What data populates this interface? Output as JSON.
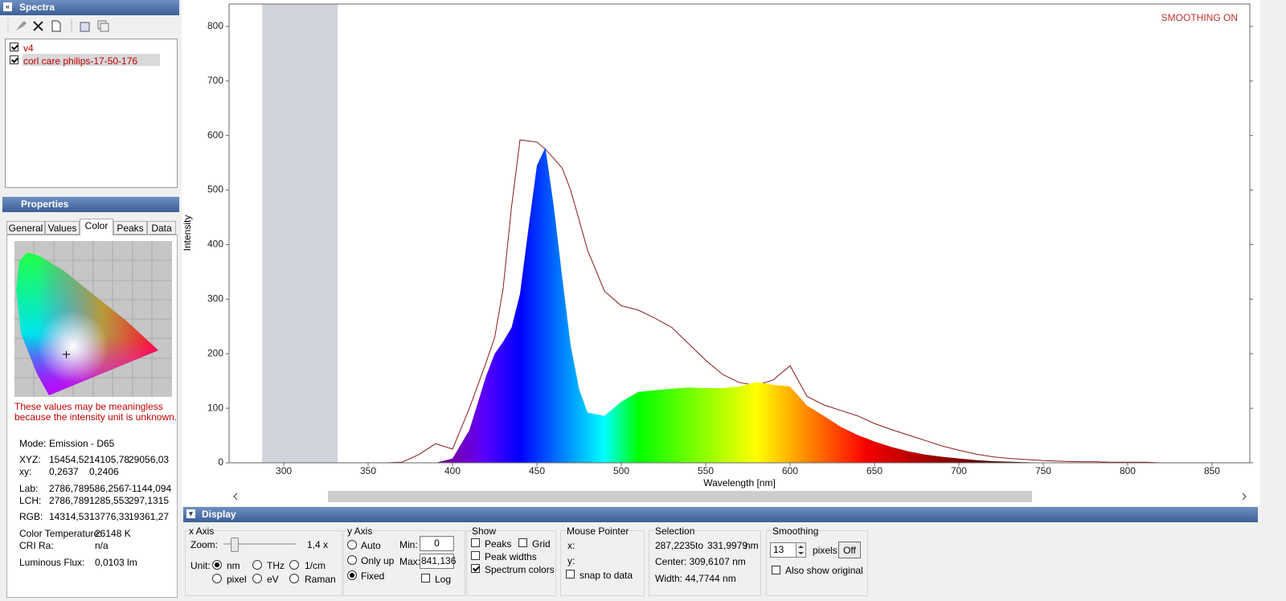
{
  "spectra_panel": {
    "title": "Spectra",
    "checked": [
      true,
      true
    ]
  },
  "chart_data": {
    "type": "line",
    "x_label": "Wavelength [nm]",
    "y_label": "Intensity",
    "annotation": "SMOOTHING ON",
    "annotation_color": "#c0302a",
    "xlim": [
      267.6,
      872.4
    ],
    "ylim": [
      0,
      841.136
    ],
    "xticks": [
      300,
      350,
      400,
      450,
      500,
      550,
      600,
      650,
      700,
      750,
      800,
      850
    ],
    "yticks": [
      0,
      100,
      200,
      300,
      400,
      500,
      600,
      700,
      800
    ],
    "grid": false,
    "selection": [
      {
        "value": 287.2235,
        "label": "287,2235"
      },
      {
        "value": 331.9979,
        "label": "331,9979"
      }
    ],
    "x": [
      270,
      280,
      290,
      300,
      310,
      320,
      330,
      340,
      350,
      360,
      370,
      380,
      390,
      400,
      410,
      420,
      425,
      430,
      435,
      440,
      445,
      450,
      455,
      460,
      465,
      470,
      475,
      480,
      490,
      500,
      510,
      520,
      530,
      540,
      550,
      560,
      570,
      580,
      590,
      600,
      610,
      620,
      630,
      640,
      650,
      660,
      670,
      680,
      690,
      700,
      710,
      720,
      730,
      740,
      750,
      760,
      770,
      780,
      790,
      800,
      810,
      820,
      830,
      840,
      850,
      860,
      870
    ],
    "series": [
      {
        "name": "v4",
        "color": "#8b1a1a",
        "values": [
          0,
          0,
          0,
          0,
          0,
          0,
          0,
          0,
          0,
          0,
          1,
          15,
          35,
          25,
          100,
          185,
          230,
          320,
          470,
          592,
          590,
          588,
          575,
          558,
          540,
          500,
          445,
          390,
          315,
          288,
          280,
          265,
          248,
          218,
          188,
          162,
          147,
          142,
          152,
          178,
          122,
          106,
          96,
          86,
          72,
          61,
          51,
          41,
          31,
          23,
          16,
          11,
          8,
          6,
          4,
          3,
          2,
          2,
          1,
          1,
          1,
          0,
          0,
          0,
          0,
          0,
          0
        ]
      },
      {
        "name": "corl care philips-17-50-176",
        "color": "#8b1a1a",
        "area": true,
        "values": [
          0,
          0,
          0,
          0,
          0,
          0,
          0,
          0,
          0,
          0,
          0,
          0,
          0,
          8,
          60,
          160,
          200,
          222,
          248,
          310,
          430,
          545,
          578,
          470,
          340,
          215,
          135,
          92,
          86,
          112,
          130,
          133,
          136,
          138,
          137,
          137,
          140,
          148,
          143,
          140,
          105,
          86,
          66,
          51,
          39,
          29,
          21,
          15,
          11,
          8,
          5,
          3,
          2,
          1,
          0,
          0,
          0,
          0,
          0,
          0,
          0,
          0,
          0,
          0,
          0,
          0,
          0
        ]
      }
    ]
  },
  "properties": {
    "title": "Properties",
    "tabs": [
      "General",
      "Values",
      "Color",
      "Peaks",
      "Data"
    ],
    "selected_tab": 2,
    "warning": [
      "These values may be meaningless",
      "because the intensity unit is unknown."
    ],
    "rows": [
      [
        "Mode:",
        "Emission - D65"
      ],
      [
        "XYZ:",
        "15454,52",
        "14105,78",
        "29056,03"
      ],
      [
        "xy:",
        "0,2637",
        "0,2406"
      ],
      [
        "Lab:",
        "2786,789",
        "586,2567",
        "-1144,094"
      ],
      [
        "LCH:",
        "2786,789",
        "1285,553",
        "297,1315"
      ],
      [
        "RGB:",
        "14314,53",
        "13776,33",
        "19361,27"
      ],
      [
        "Color Temperature:",
        "26148 K"
      ],
      [
        "CRI Ra:",
        "n/a"
      ],
      [
        "Luminous Flux:",
        "0,0103 lm"
      ]
    ]
  },
  "display": {
    "title": "Display",
    "x_axis": {
      "title": "x Axis",
      "zoom_label": "Zoom:",
      "zoom_value": "1,4 x",
      "unit_label": "Unit:",
      "units": [
        "nm",
        "THz",
        "1/cm",
        "pixel",
        "eV",
        "Raman"
      ],
      "selected": 0
    },
    "y_axis": {
      "title": "y Axis",
      "modes": [
        "Auto",
        "Only up",
        "Fixed"
      ],
      "selected": 2,
      "min_label": "Min:",
      "min": "0",
      "max_label": "Max:",
      "max": "841,136",
      "log": {
        "label": "Log",
        "checked": false
      }
    },
    "show": {
      "title": "Show",
      "options": [
        {
          "label": "Peaks",
          "checked": false
        },
        {
          "label": "Grid",
          "checked": false
        },
        {
          "label": "Peak widths",
          "checked": false
        },
        {
          "label": "Spectrum colors",
          "checked": true
        }
      ]
    },
    "mouse_pointer": {
      "title": "Mouse Pointer",
      "x": "x:",
      "y": "y:",
      "snap": {
        "label": "snap to data",
        "checked": false
      }
    },
    "selection": {
      "title": "Selection",
      "to": "to",
      "unit": "nm",
      "center": "Center: 309,6107 nm",
      "width": "Width: 44,7744 nm"
    },
    "smoothing": {
      "title": "Smoothing",
      "value": "13",
      "unit": "pixels",
      "button": "Off",
      "also": {
        "label": "Also show original",
        "checked": false
      }
    }
  }
}
